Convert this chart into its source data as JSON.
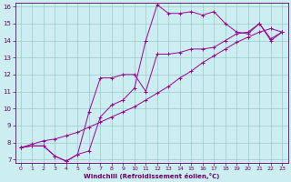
{
  "xlabel": "Windchill (Refroidissement éolien,°C)",
  "line1_x": [
    0,
    1,
    2,
    3,
    4,
    5,
    6,
    7,
    8,
    9,
    10,
    11,
    12,
    13,
    14,
    15,
    16,
    17,
    18,
    19,
    20,
    21,
    22,
    23
  ],
  "line1_y": [
    7.7,
    7.8,
    7.8,
    7.2,
    6.9,
    7.3,
    9.8,
    11.8,
    11.8,
    12.0,
    12.0,
    11.0,
    13.2,
    13.2,
    13.3,
    13.5,
    13.5,
    13.6,
    14.0,
    14.4,
    14.5,
    15.0,
    14.0,
    14.5
  ],
  "line2_x": [
    0,
    1,
    2,
    3,
    4,
    5,
    6,
    7,
    8,
    9,
    10,
    11,
    12,
    13,
    14,
    15,
    16,
    17,
    18,
    19,
    20,
    21,
    22,
    23
  ],
  "line2_y": [
    7.7,
    7.8,
    7.8,
    7.2,
    6.9,
    7.3,
    7.5,
    9.5,
    10.2,
    10.5,
    11.2,
    14.0,
    16.1,
    15.6,
    15.6,
    15.7,
    15.5,
    15.7,
    15.0,
    14.5,
    14.4,
    15.0,
    14.1,
    14.5
  ],
  "line3_x": [
    0,
    1,
    2,
    3,
    4,
    5,
    6,
    7,
    8,
    9,
    10,
    11,
    12,
    13,
    14,
    15,
    16,
    17,
    18,
    19,
    20,
    21,
    22,
    23
  ],
  "line3_y": [
    7.7,
    7.9,
    8.1,
    8.2,
    8.4,
    8.6,
    8.9,
    9.2,
    9.5,
    9.8,
    10.1,
    10.5,
    10.9,
    11.3,
    11.8,
    12.2,
    12.7,
    13.1,
    13.5,
    13.9,
    14.2,
    14.5,
    14.7,
    14.5
  ],
  "color": "#990099",
  "bg_color": "#cceef0",
  "grid_color": "#99cccc",
  "xlim": [
    -0.5,
    23.5
  ],
  "ylim": [
    6.8,
    16.2
  ],
  "yticks": [
    7,
    8,
    9,
    10,
    11,
    12,
    13,
    14,
    15,
    16
  ],
  "xticks": [
    0,
    1,
    2,
    3,
    4,
    5,
    6,
    7,
    8,
    9,
    10,
    11,
    12,
    13,
    14,
    15,
    16,
    17,
    18,
    19,
    20,
    21,
    22,
    23
  ],
  "xlabel_color": "#660066",
  "tick_color": "#660066",
  "axis_color": "#660066",
  "marker": "+"
}
